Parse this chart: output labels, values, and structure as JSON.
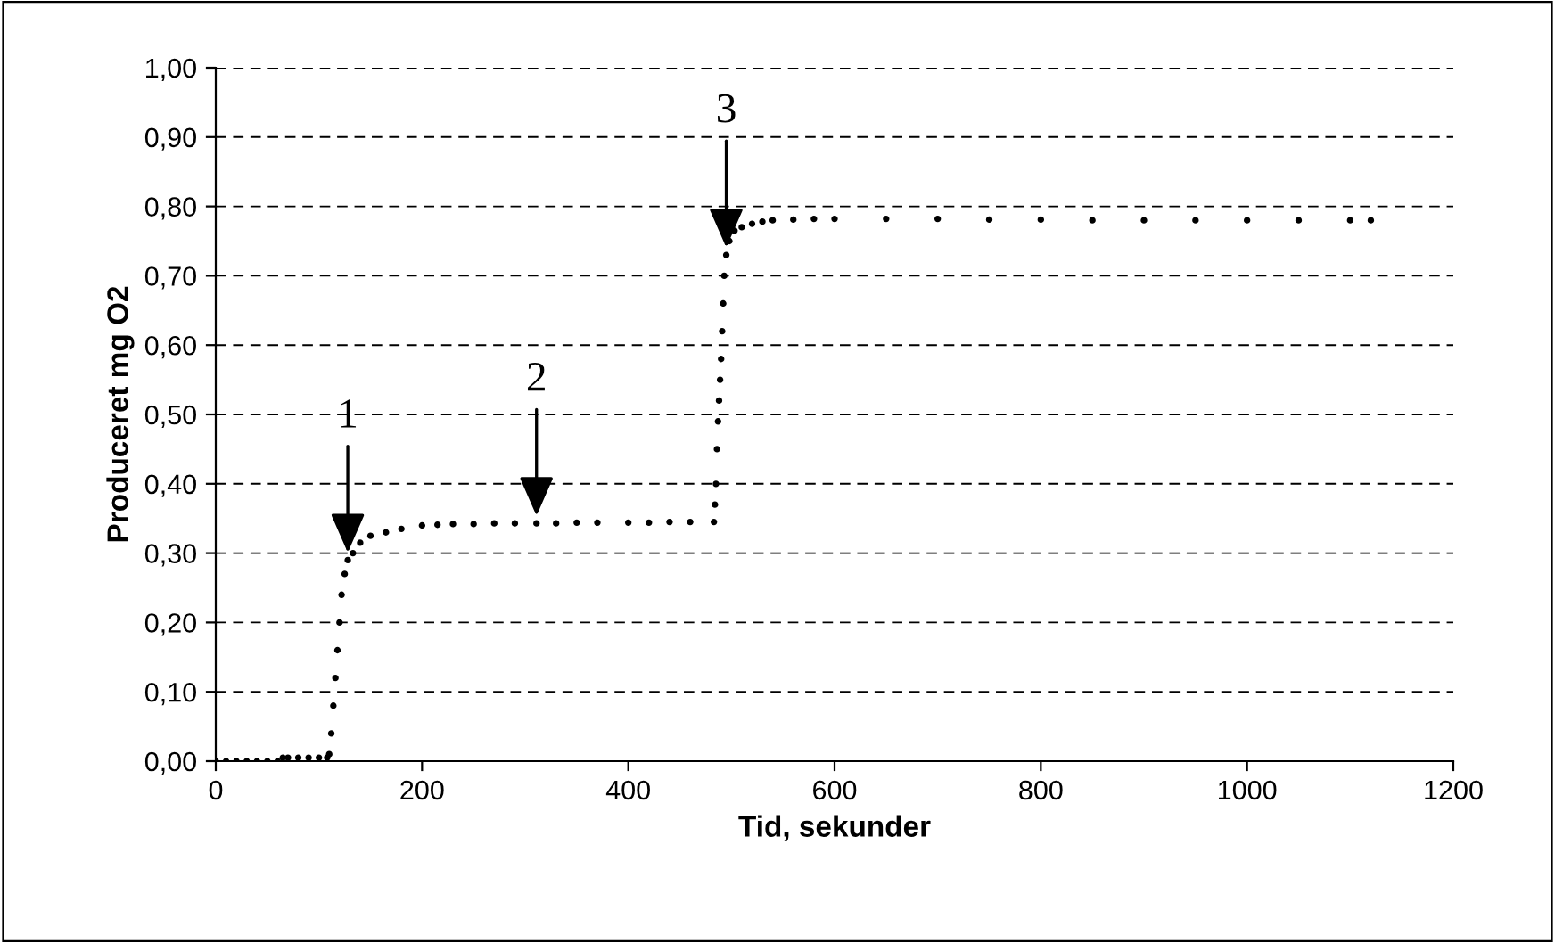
{
  "chart_data": {
    "type": "scatter",
    "xlabel": "Tid, sekunder",
    "ylabel": "Produceret mg O2",
    "x": [
      0,
      10,
      20,
      30,
      40,
      50,
      60,
      65,
      70,
      80,
      90,
      100,
      108,
      110,
      112,
      114,
      116,
      118,
      120,
      122,
      125,
      128,
      133,
      140,
      150,
      165,
      180,
      200,
      215,
      230,
      250,
      270,
      290,
      311,
      330,
      350,
      370,
      400,
      420,
      440,
      460,
      483,
      484,
      485,
      486,
      487,
      488,
      489,
      490,
      491,
      492,
      493,
      495,
      498,
      503,
      510,
      520,
      530,
      540,
      560,
      580,
      600,
      650,
      700,
      750,
      800,
      850,
      900,
      950,
      1000,
      1050,
      1100,
      1120
    ],
    "series": [
      {
        "color": "#000000",
        "values": [
          0.0,
          0.0,
          0.0,
          0.0,
          0.0,
          0.0,
          0.0,
          0.005,
          0.005,
          0.005,
          0.005,
          0.005,
          0.005,
          0.01,
          0.04,
          0.08,
          0.12,
          0.16,
          0.2,
          0.24,
          0.27,
          0.29,
          0.3,
          0.315,
          0.325,
          0.33,
          0.335,
          0.34,
          0.341,
          0.342,
          0.342,
          0.343,
          0.343,
          0.343,
          0.343,
          0.344,
          0.344,
          0.344,
          0.344,
          0.345,
          0.345,
          0.345,
          0.37,
          0.4,
          0.45,
          0.49,
          0.52,
          0.55,
          0.58,
          0.62,
          0.66,
          0.7,
          0.73,
          0.75,
          0.765,
          0.77,
          0.775,
          0.778,
          0.78,
          0.781,
          0.782,
          0.782,
          0.782,
          0.782,
          0.781,
          0.781,
          0.78,
          0.78,
          0.78,
          0.78,
          0.78,
          0.78,
          0.78
        ]
      }
    ],
    "marker": "circle",
    "xlim": [
      0,
      1200
    ],
    "xticks": [
      0,
      200,
      400,
      600,
      800,
      1000,
      1200
    ],
    "ylim": [
      0,
      1.0
    ],
    "yticks": [
      {
        "value": 0,
        "label": "0,00"
      },
      {
        "value": 0.1,
        "label": "0,10"
      },
      {
        "value": 0.2,
        "label": "0,20"
      },
      {
        "value": 0.3,
        "label": "0,30"
      },
      {
        "value": 0.4,
        "label": "0,40"
      },
      {
        "value": 0.5,
        "label": "0,50"
      },
      {
        "value": 0.6,
        "label": "0,60"
      },
      {
        "value": 0.7,
        "label": "0,70"
      },
      {
        "value": 0.8,
        "label": "0,80"
      },
      {
        "value": 0.9,
        "label": "0,90"
      },
      {
        "value": 1.0,
        "label": "1,00"
      }
    ],
    "grid": "y",
    "line_style": "dashed",
    "annotations": [
      {
        "text": "1",
        "x": 128,
        "y": 0.29
      },
      {
        "text": "2",
        "x": 311,
        "y": 0.343
      },
      {
        "text": "3",
        "x": 495,
        "y": 0.73
      }
    ]
  }
}
